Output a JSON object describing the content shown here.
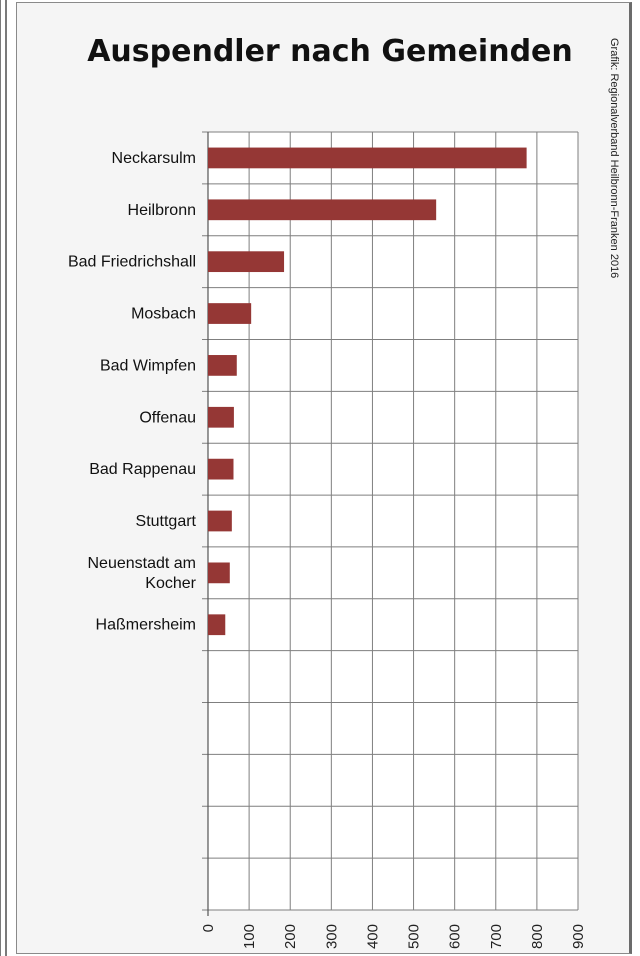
{
  "chart_data": {
    "type": "bar",
    "orientation": "horizontal",
    "title": "Auspendler nach Gemeinden",
    "source": "Grafik: Regionalverband Heilbronn-Franken 2016",
    "categories": [
      "Neckarsulm",
      "Heilbronn",
      "Bad Friedrichshall",
      "Mosbach",
      "Bad Wimpfen",
      "Offenau",
      "Bad Rappenau",
      "Stuttgart",
      "Neuenstadt am Kocher",
      "Haßmersheim",
      "",
      "",
      "",
      "",
      ""
    ],
    "category_lines": [
      [
        "Neckarsulm"
      ],
      [
        "Heilbronn"
      ],
      [
        "Bad Friedrichshall"
      ],
      [
        "Mosbach"
      ],
      [
        "Bad Wimpfen"
      ],
      [
        "Offenau"
      ],
      [
        "Bad Rappenau"
      ],
      [
        "Stuttgart"
      ],
      [
        "Neuenstadt am",
        "Kocher"
      ],
      [
        "Haßmersheim"
      ],
      [],
      [],
      [],
      [],
      []
    ],
    "values": [
      775,
      555,
      185,
      105,
      70,
      63,
      62,
      58,
      53,
      42,
      null,
      null,
      null,
      null,
      null
    ],
    "xlim": [
      0,
      900
    ],
    "xticks": [
      "0",
      "100",
      "200",
      "300",
      "400",
      "500",
      "600",
      "700",
      "800",
      "900"
    ],
    "grid": true,
    "legend": "none",
    "bar_color": "#953735"
  }
}
